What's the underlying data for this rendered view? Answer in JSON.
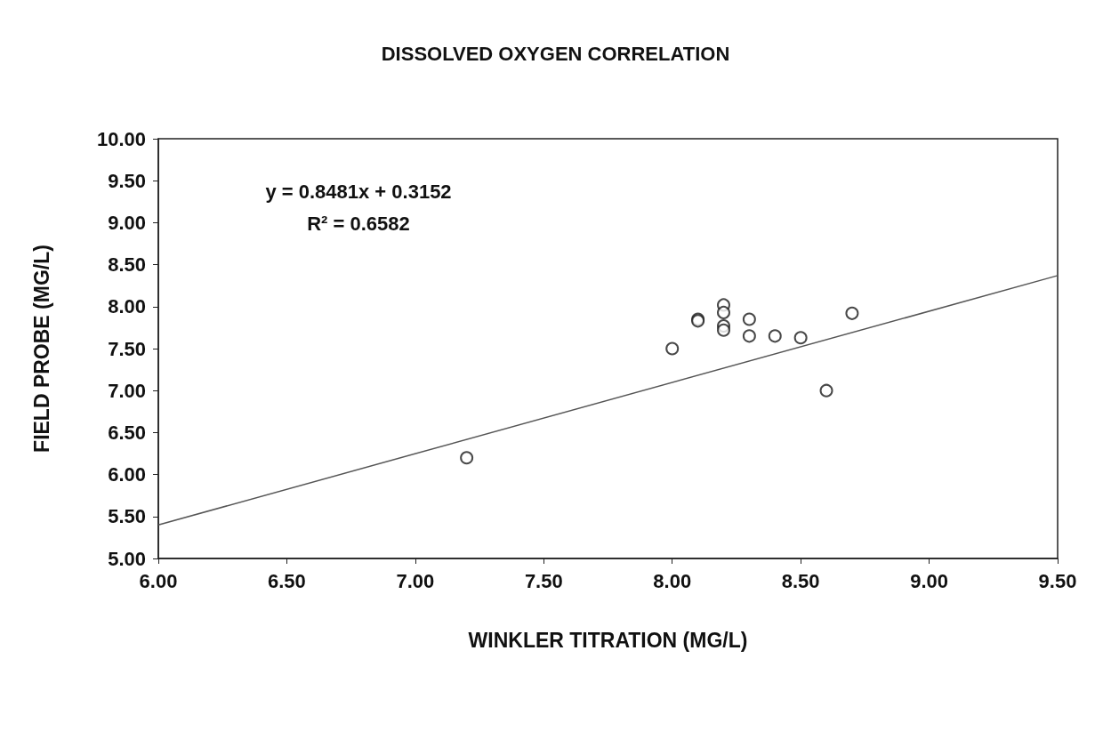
{
  "chart_data": {
    "type": "scatter",
    "title": "DISSOLVED OXYGEN CORRELATION",
    "xlabel": "WINKLER TITRATION (MG/L)",
    "ylabel": "FIELD PROBE (MG/L)",
    "annotations": [
      "y = 0.8481x + 0.3152",
      "R² = 0.6582"
    ],
    "series": [
      {
        "color": "#1a1a1a",
        "x": [
          7.2,
          8.0,
          8.1,
          8.1,
          8.2,
          8.2,
          8.2,
          8.2,
          8.3,
          8.3,
          8.4,
          8.5,
          8.6,
          8.7
        ],
        "values": [
          6.2,
          7.5,
          7.85,
          7.83,
          8.02,
          7.93,
          7.77,
          7.72,
          7.85,
          7.65,
          7.65,
          7.63,
          7.0,
          7.92
        ]
      },
      {
        "type": "line",
        "marker": "none",
        "color": "#555555",
        "x": [
          6.0,
          9.5
        ],
        "values": [
          5.4,
          8.37
        ]
      }
    ],
    "xlim": [
      6,
      9.5
    ],
    "ylim": [
      5,
      10
    ],
    "xticks": [
      {
        "value": 6,
        "label": "6.00"
      },
      {
        "value": 6.5,
        "label": "6.50"
      },
      {
        "value": 7,
        "label": "7.00"
      },
      {
        "value": 7.5,
        "label": "7.50"
      },
      {
        "value": 8,
        "label": "8.00"
      },
      {
        "value": 8.5,
        "label": "8.50"
      },
      {
        "value": 9,
        "label": "9.00"
      },
      {
        "value": 9.5,
        "label": "9.50"
      }
    ],
    "yticks": [
      {
        "value": 5,
        "label": "5.00"
      },
      {
        "value": 5.5,
        "label": "5.50"
      },
      {
        "value": 6,
        "label": "6.00"
      },
      {
        "value": 6.5,
        "label": "6.50"
      },
      {
        "value": 7,
        "label": "7.00"
      },
      {
        "value": 7.5,
        "label": "7.50"
      },
      {
        "value": 8,
        "label": "8.00"
      },
      {
        "value": 8.5,
        "label": "8.50"
      },
      {
        "value": 9,
        "label": "9.00"
      },
      {
        "value": 9.5,
        "label": "9.50"
      },
      {
        "value": 10,
        "label": "10.00"
      }
    ],
    "grid": false,
    "marker": "circle"
  }
}
